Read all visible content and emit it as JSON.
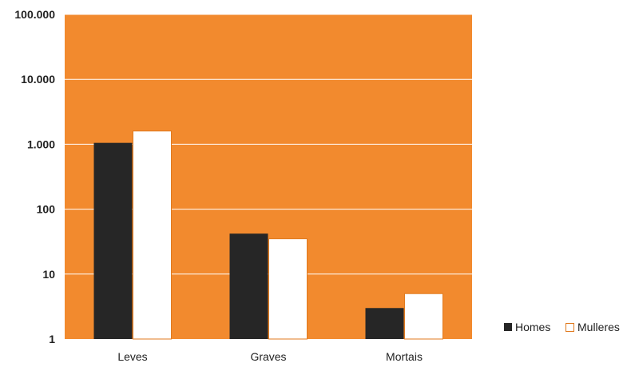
{
  "chart_data": {
    "type": "bar",
    "y_scale": "log",
    "ylim": [
      1,
      100000
    ],
    "y_ticks": [
      1,
      10,
      100,
      1000,
      10000,
      100000
    ],
    "y_tick_labels": [
      "1",
      "10",
      "100",
      "1.000",
      "10.000",
      "100.000"
    ],
    "categories": [
      "Leves",
      "Graves",
      "Mortais"
    ],
    "series": [
      {
        "name": "Homes",
        "values": [
          1050,
          42,
          3
        ]
      },
      {
        "name": "Mulleres",
        "values": [
          1600,
          35,
          5
        ]
      }
    ],
    "grid": true,
    "legend_position": "right-bottom",
    "colors": {
      "plot_background": "#F28A2E",
      "gridline": "#FFFFFF",
      "Homes": "#262626",
      "Mulleres": "#FFFFFF",
      "Mulleres_border": "#E07A1F"
    }
  }
}
